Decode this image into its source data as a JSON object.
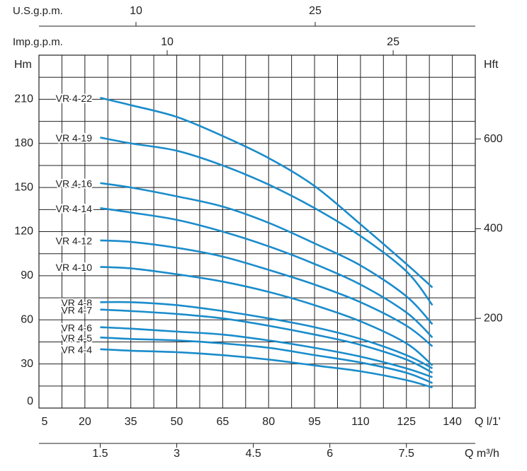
{
  "chart_data": {
    "type": "line",
    "x_label": "Q l/1'",
    "y_label": "Hm",
    "y2_label": "Hft",
    "x": [
      25,
      35,
      50,
      65,
      80,
      95,
      110,
      125,
      133.5
    ],
    "xlim": [
      5,
      147.5
    ],
    "xticks": [
      5,
      20,
      35,
      50,
      65,
      80,
      95,
      110,
      125,
      140
    ],
    "x_minor_ticks": [
      12.5,
      27.5,
      42.5,
      57.5,
      72.5,
      87.5,
      102.5,
      117.5,
      132.5
    ],
    "ylim": [
      0,
      240
    ],
    "yticks": [
      0,
      30,
      60,
      90,
      120,
      150,
      180,
      210
    ],
    "y_minor_ticks": [
      15,
      45,
      75,
      105,
      135,
      165,
      195,
      225
    ],
    "y2lim": [
      0,
      787
    ],
    "y2ticks": [
      200,
      400,
      600
    ],
    "grid": true,
    "extra_x_axes": [
      {
        "label": "U.S.g.p.m.",
        "lim": [
          1.88,
          38.4
        ],
        "ticks": [
          10,
          25
        ]
      },
      {
        "label": "Imp.g.p.m.",
        "lim": [
          1.49,
          30.45
        ],
        "ticks": [
          10,
          25
        ]
      },
      {
        "label": "Q m³/h",
        "lim": [
          0.3,
          8.85
        ],
        "ticks": [
          1.5,
          3,
          4.5,
          6,
          7.5
        ]
      }
    ],
    "series": [
      {
        "name": "VR 4-22",
        "color": "#1a8ccb",
        "values": [
          211,
          206,
          198,
          185,
          170,
          151,
          125,
          98,
          82
        ]
      },
      {
        "name": "VR 4-19",
        "color": "#1a8ccb",
        "values": [
          184,
          180,
          175,
          165,
          152,
          136,
          117,
          93,
          70
        ]
      },
      {
        "name": "VR 4-16",
        "color": "#1a8ccb",
        "values": [
          153,
          150,
          144,
          137,
          126,
          112,
          97,
          76,
          57
        ]
      },
      {
        "name": "VR 4-14",
        "color": "#1a8ccb",
        "values": [
          136,
          133,
          128,
          120,
          110,
          98,
          84,
          65,
          48
        ]
      },
      {
        "name": "VR 4-12",
        "color": "#1a8ccb",
        "values": [
          114,
          113,
          109,
          103,
          94,
          84,
          72,
          56,
          42
        ]
      },
      {
        "name": "VR 4-10",
        "color": "#1a8ccb",
        "values": [
          96,
          95,
          91,
          86,
          79,
          70,
          59,
          44,
          29
        ]
      },
      {
        "name": "VR 4-8",
        "color": "#1a8ccb",
        "values": [
          72,
          72,
          70,
          66,
          61,
          55,
          47,
          36,
          27
        ]
      },
      {
        "name": "VR 4-7",
        "color": "#1a8ccb",
        "values": [
          67,
          66,
          64,
          61,
          56,
          50,
          43,
          33,
          24
        ]
      },
      {
        "name": "VR 4-6",
        "color": "#1a8ccb",
        "values": [
          55,
          54,
          52,
          50,
          46,
          41,
          35,
          27,
          21
        ]
      },
      {
        "name": "VR 4-5",
        "color": "#1a8ccb",
        "values": [
          48,
          47,
          46,
          44,
          41,
          36,
          31,
          24,
          17
        ]
      },
      {
        "name": "VR 4-4",
        "color": "#1a8ccb",
        "values": [
          40,
          39,
          38,
          36,
          33,
          29,
          25,
          19,
          14
        ]
      }
    ]
  }
}
